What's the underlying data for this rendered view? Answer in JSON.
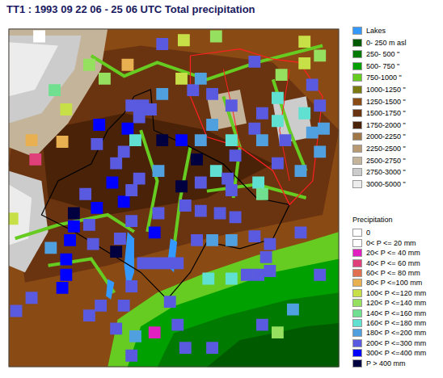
{
  "chart_data": {
    "type": "scatter",
    "title": "TT1 : 1993 09 22 06 - 25 06 UTC Total precipitation",
    "xlim": [
      6.6,
      10.9
    ],
    "ylim": [
      45.2,
      47.4
    ],
    "tick_labels": false,
    "grid": false,
    "marker": "square",
    "series": [
      {
        "x": [
          7.0,
          7.65,
          8.15,
          7.85,
          7.2,
          7.35,
          6.9,
          7.3,
          6.95,
          8.2,
          8.35,
          8.45,
          8.3,
          8.15,
          7.78,
          7.75,
          8.1,
          8.0,
          8.25,
          8.6,
          8.85,
          9.1,
          9.25,
          9.5,
          9.8,
          9.9,
          9.55,
          9.05,
          8.85,
          9.1,
          9.3,
          9.45,
          9.5,
          9.85,
          9.9,
          10.1,
          10.4,
          10.2,
          10.55,
          10.45,
          10.1,
          9.9,
          9.5,
          9.25,
          9.0,
          8.6,
          8.85,
          9.1,
          9.8,
          10.15,
          10.55,
          10.45,
          10.1,
          10.65,
          10.7,
          10.65,
          8.6,
          8.88,
          9.3,
          10.45,
          10.65,
          7.6,
          7.75,
          8.1,
          8.2,
          7.95,
          8.3,
          8.55,
          7.45,
          7.45,
          7.65,
          7.4,
          7.35,
          7.35,
          7.3,
          7.15,
          7.7,
          8.0,
          8.05,
          8.2,
          8.5,
          8.55,
          8.9,
          9.1,
          9.35,
          9.55,
          9.05,
          9.25,
          9.5,
          9.8,
          10.0,
          9.95,
          9.7,
          9.85,
          10.0,
          9.5,
          9.2,
          8.35,
          8.5,
          8.65,
          8.8,
          8.2,
          8.7,
          8.1,
          7.8,
          7.65,
          8.0,
          8.25,
          8.5,
          8.8,
          8.9,
          8.2,
          9.25,
          9.9,
          10.1,
          10.3,
          10.65,
          10.4,
          6.9,
          6.65,
          6.7
        ],
        "values": [
          47.35,
          47.165,
          47.165,
          47.075,
          47.0,
          46.875,
          46.675,
          46.665,
          46.55,
          46.9,
          46.9,
          46.875,
          46.825,
          46.75,
          46.775,
          46.65,
          46.6,
          46.525,
          46.675,
          46.675,
          46.675,
          46.675,
          46.775,
          46.675,
          46.75,
          46.675,
          46.575,
          46.55,
          46.375,
          46.4,
          46.475,
          46.425,
          46.35,
          46.4,
          46.325,
          46.525,
          46.475,
          46.675,
          46.725,
          46.85,
          46.8,
          46.85,
          46.9,
          46.975,
          47.0,
          46.975,
          47.075,
          47.075,
          47.185,
          47.1,
          47.035,
          47.175,
          46.95,
          46.9,
          46.75,
          46.6,
          47.3,
          47.325,
          47.35,
          47.315,
          47.225,
          46.325,
          46.235,
          46.275,
          46.35,
          46.4,
          46.425,
          46.475,
          46.2,
          46.115,
          46.125,
          46.025,
          45.9,
          45.8,
          45.715,
          45.975,
          46.0,
          45.95,
          46.035,
          46.15,
          46.075,
          46.2,
          46.25,
          46.215,
          46.2,
          46.175,
          46.025,
          46.025,
          46.025,
          46.05,
          46.0,
          45.915,
          45.8,
          45.8,
          45.825,
          45.775,
          45.775,
          45.875,
          45.875,
          45.875,
          45.875,
          45.725,
          45.625,
          45.6,
          45.6,
          45.535,
          45.45,
          45.4,
          45.425,
          45.475,
          45.325,
          45.275,
          45.325,
          45.475,
          45.425,
          45.575,
          45.8,
          46.075,
          45.65,
          46.165,
          45.565
        ],
        "precipitation": [
          10,
          130,
          90,
          140,
          150,
          110,
          90,
          90,
          50,
          250,
          250,
          250,
          250,
          350,
          350,
          250,
          250,
          250,
          170,
          450,
          350,
          190,
          190,
          170,
          250,
          190,
          250,
          450,
          450,
          250,
          170,
          250,
          250,
          170,
          150,
          250,
          190,
          250,
          190,
          170,
          170,
          250,
          250,
          250,
          250,
          190,
          110,
          190,
          230,
          130,
          250,
          110,
          170,
          250,
          190,
          190,
          250,
          110,
          125,
          110,
          130,
          250,
          350,
          350,
          250,
          350,
          250,
          190,
          450,
          350,
          250,
          350,
          350,
          350,
          350,
          190,
          250,
          450,
          250,
          250,
          350,
          250,
          250,
          250,
          250,
          250,
          250,
          190,
          190,
          250,
          250,
          250,
          250,
          250,
          250,
          170,
          170,
          250,
          250,
          250,
          250,
          250,
          250,
          250,
          250,
          250,
          250,
          190,
          30,
          250,
          250,
          250,
          250,
          250,
          130,
          190,
          250,
          250,
          250,
          110,
          250
        ]
      }
    ]
  },
  "map_key": {
    "lakes": {
      "label": "Lakes",
      "color": "#3399ff"
    },
    "elevation": [
      {
        "label": "0- 250 m asl",
        "color": "#005a00"
      },
      {
        "label": "250- 500    \"",
        "color": "#007a00"
      },
      {
        "label": "500- 750    \"",
        "color": "#00a000"
      },
      {
        "label": "750-1000    \"",
        "color": "#66cc22"
      },
      {
        "label": "1000-1250    \"",
        "color": "#7a7a10"
      },
      {
        "label": "1250-1500    \"",
        "color": "#8a4a14"
      },
      {
        "label": "1500-1750    \"",
        "color": "#6a3410"
      },
      {
        "label": "1750-2000    \"",
        "color": "#4a2208"
      },
      {
        "label": "2000-2250    \"",
        "color": "#a07848"
      },
      {
        "label": "2250-2500    \"",
        "color": "#b89a74"
      },
      {
        "label": "2500-2750    \"",
        "color": "#c4b49a"
      },
      {
        "label": "2750-3000    \"",
        "color": "#cccccc"
      },
      {
        "label": "3000-5000    \"",
        "color": "#ececec"
      }
    ],
    "precipitation_heading": "Precipitation",
    "precipitation_classes": [
      {
        "label": "0",
        "min": 0,
        "max": 0,
        "color": "#ffffff"
      },
      {
        "label": "0< P <= 20 mm",
        "min": 0,
        "max": 20,
        "color": "#ffffff"
      },
      {
        "label": "20< P <= 40 mm",
        "min": 20,
        "max": 40,
        "color": "#e020c0"
      },
      {
        "label": "40< P <= 60 mm",
        "min": 40,
        "max": 60,
        "color": "#e0407a"
      },
      {
        "label": "60< P <= 80 mm",
        "min": 60,
        "max": 80,
        "color": "#e07050"
      },
      {
        "label": "80< P <=100 mm",
        "min": 80,
        "max": 100,
        "color": "#e8b050"
      },
      {
        "label": "100< P <=120 mm",
        "min": 100,
        "max": 120,
        "color": "#c8e048"
      },
      {
        "label": "120< P <=140 mm",
        "min": 120,
        "max": 140,
        "color": "#96e060"
      },
      {
        "label": "140< P <=160 mm",
        "min": 140,
        "max": 160,
        "color": "#70e090"
      },
      {
        "label": "160< P <=180 mm",
        "min": 160,
        "max": 180,
        "color": "#60e0d0"
      },
      {
        "label": "180< P <=200 mm",
        "min": 180,
        "max": 200,
        "color": "#50a0e0"
      },
      {
        "label": "200< P <=300 mm",
        "min": 200,
        "max": 300,
        "color": "#5a5ae0"
      },
      {
        "label": "300< P <=400 mm",
        "min": 300,
        "max": 400,
        "color": "#0000ff"
      },
      {
        "label": "P > 400 mm",
        "min": 400,
        "max": null,
        "color": "#000040"
      }
    ]
  }
}
